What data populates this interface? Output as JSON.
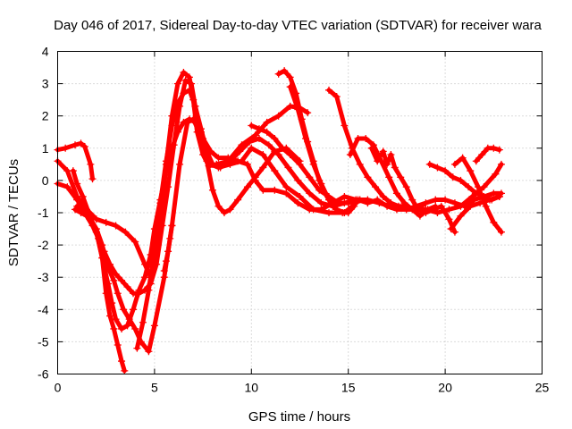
{
  "chart_data": {
    "type": "scatter",
    "title": "Day 046 of 2017, Sidereal Day-to-day VTEC variation (SDTVAR) for receiver wara",
    "xlabel": "GPS time / hours",
    "ylabel": "SDTVAR / TECUs",
    "xlim": [
      0,
      25
    ],
    "ylim": [
      -6,
      4
    ],
    "xticks": [
      0,
      5,
      10,
      15,
      20,
      25
    ],
    "yticks": [
      -6,
      -5,
      -4,
      -3,
      -2,
      -1,
      0,
      1,
      2,
      3,
      4
    ],
    "grid": true,
    "legend": "none",
    "marker": "plus",
    "color": "#ff0000",
    "series": [
      {
        "x": [
          0,
          0.4,
          0.9,
          1.2,
          1.4,
          1.7,
          1.8
        ],
        "y": [
          0.95,
          1.0,
          1.1,
          1.15,
          1.05,
          0.5,
          0.05
        ]
      },
      {
        "x": [
          0,
          0.5,
          1.0,
          1.5,
          2.0,
          2.5,
          3.0,
          3.5,
          4.0,
          4.5,
          4.8,
          5.0,
          5.3,
          5.6,
          5.9,
          6.2,
          6.5,
          6.8,
          7.0,
          7.2,
          7.5,
          7.8,
          8.2,
          8.8,
          9.5,
          10.2,
          10.8,
          11.4,
          12.0,
          12.5,
          12.9
        ],
        "y": [
          0.6,
          0.3,
          -0.5,
          -0.9,
          -1.2,
          -1.3,
          -1.4,
          -1.6,
          -1.9,
          -2.6,
          -3.0,
          -2.6,
          -1.5,
          0.5,
          2.0,
          3.0,
          3.35,
          3.2,
          2.5,
          1.5,
          0.8,
          0.45,
          0.5,
          0.6,
          1.1,
          1.4,
          1.8,
          2.0,
          2.3,
          2.25,
          2.1
        ]
      },
      {
        "x": [
          0,
          0.5,
          1.0,
          1.5,
          2.0,
          2.3,
          2.6,
          2.9,
          3.1,
          3.4,
          3.7,
          4.0,
          4.3,
          4.7,
          5.0,
          5.5,
          5.9,
          6.3,
          6.7,
          7.0,
          7.3,
          7.6,
          7.9,
          8.3,
          8.9,
          9.5,
          10.0,
          10.6,
          11.2,
          11.8,
          12.5,
          13.2,
          14.0,
          14.8
        ],
        "y": [
          -0.1,
          -0.2,
          -0.6,
          -1.0,
          -1.5,
          -2.0,
          -2.7,
          -3.1,
          -3.5,
          -4.0,
          -4.3,
          -4.6,
          -5.0,
          -5.3,
          -4.5,
          -3.0,
          -1.4,
          0.5,
          1.8,
          1.9,
          1.5,
          1.0,
          0.5,
          0.4,
          0.5,
          0.6,
          1.0,
          0.8,
          0.3,
          -0.2,
          -0.5,
          -0.9,
          -1.0,
          -1.0
        ]
      },
      {
        "x": [
          0.8,
          1.0,
          1.3,
          1.6,
          2.0,
          2.3,
          2.6,
          2.8,
          3.0,
          3.3,
          3.6,
          3.9,
          4.2,
          4.5,
          4.8,
          5.0,
          5.3,
          5.6,
          5.9,
          6.2,
          6.5,
          6.8,
          7.1,
          7.5,
          7.9,
          8.3,
          8.8,
          9.3,
          9.8,
          10.2,
          10.6,
          11.2,
          11.8,
          12.4,
          13.0,
          13.6,
          14.2,
          14.8,
          15.4
        ],
        "y": [
          0.3,
          -0.1,
          -0.5,
          -1.0,
          -1.6,
          -2.4,
          -3.2,
          -3.8,
          -4.3,
          -4.6,
          -4.5,
          -4.0,
          -3.4,
          -3.0,
          -2.3,
          -1.5,
          -0.6,
          0.3,
          1.0,
          1.5,
          1.8,
          1.9,
          1.8,
          1.3,
          0.9,
          0.7,
          0.7,
          0.6,
          0.5,
          0.0,
          -0.3,
          -0.3,
          -0.4,
          -0.7,
          -0.9,
          -0.9,
          -0.7,
          -0.5,
          -0.6
        ]
      },
      {
        "x": [
          1.0,
          1.5,
          2.0,
          2.3,
          2.5,
          2.7,
          2.9,
          3.1,
          3.3,
          3.45
        ],
        "y": [
          -0.8,
          -1.1,
          -1.6,
          -2.4,
          -3.5,
          -4.2,
          -4.6,
          -5.1,
          -5.6,
          -5.9
        ]
      },
      {
        "x": [
          0.9,
          1.2,
          1.5,
          1.8,
          2.1,
          2.4,
          2.7,
          3.0,
          3.3,
          3.6,
          3.9,
          4.2,
          4.5,
          4.8,
          5.1,
          5.4,
          5.7,
          6.0,
          6.3,
          6.6,
          6.9,
          7.1,
          7.4,
          7.7,
          8.0,
          8.3,
          8.6,
          8.9,
          9.3,
          9.8,
          10.2,
          10.6,
          11.2,
          11.8,
          12.5
        ],
        "y": [
          -0.9,
          -1.0,
          -1.1,
          -1.4,
          -1.8,
          -2.2,
          -2.6,
          -2.9,
          -3.1,
          -3.3,
          -3.5,
          -3.5,
          -3.4,
          -3.2,
          -2.6,
          -1.4,
          -0.2,
          1.1,
          2.3,
          3.1,
          3.0,
          2.3,
          1.5,
          0.6,
          -0.3,
          -0.8,
          -1.0,
          -0.9,
          -0.6,
          -0.2,
          0.1,
          0.4,
          0.9,
          1.0,
          0.6
        ]
      },
      {
        "x": [
          4.1,
          4.4,
          4.7,
          5.0,
          5.3,
          5.6,
          5.9,
          6.2,
          6.5,
          6.8,
          7.1,
          7.4,
          7.7,
          8.0,
          8.4,
          8.9,
          9.4,
          9.9,
          10.4,
          10.9,
          11.4,
          11.9,
          12.4,
          13.0,
          13.6,
          14.2,
          14.8,
          15.4,
          16.0,
          16.6,
          17.2,
          17.8,
          18.4,
          19.0,
          19.6,
          20.2,
          20.8,
          21.4,
          22.0,
          22.6,
          22.9
        ],
        "y": [
          -5.2,
          -4.4,
          -3.4,
          -2.1,
          -0.7,
          0.6,
          1.7,
          2.4,
          2.7,
          2.8,
          2.3,
          1.6,
          0.9,
          0.5,
          0.4,
          0.6,
          0.9,
          1.2,
          1.3,
          1.1,
          0.8,
          0.4,
          0.0,
          -0.4,
          -0.7,
          -0.8,
          -0.7,
          -0.6,
          -0.6,
          -0.7,
          -0.8,
          -0.8,
          -0.9,
          -0.9,
          -1.0,
          -0.9,
          -0.8,
          -0.5,
          -0.2,
          0.2,
          0.5
        ]
      },
      {
        "x": [
          5.9,
          5.8,
          5.7,
          5.6,
          5.5
        ],
        "y": [
          -1.4,
          -1.8,
          -2.2,
          -2.5,
          -2.8
        ]
      },
      {
        "x": [
          10.0,
          10.4,
          10.8,
          11.2,
          11.6,
          12.0,
          12.5,
          13.0,
          13.5,
          14.0,
          14.5,
          15.0,
          15.5,
          16.0,
          16.5,
          17.0,
          17.5,
          18.0,
          18.5,
          19.0,
          19.5,
          20.0,
          20.5,
          21.0,
          21.5,
          22.0,
          22.5,
          22.9
        ],
        "y": [
          1.7,
          1.6,
          1.5,
          1.3,
          1.0,
          0.8,
          0.5,
          0.1,
          -0.3,
          -0.5,
          -0.7,
          -0.7,
          -0.6,
          -0.7,
          -0.6,
          -0.8,
          -0.9,
          -0.9,
          -0.8,
          -0.7,
          -0.6,
          -0.6,
          -0.7,
          -0.8,
          -0.6,
          -0.5,
          -0.4,
          -0.4
        ]
      },
      {
        "x": [
          11.4,
          11.7,
          12.0,
          12.3,
          12.6,
          12.9,
          13.2,
          13.5,
          13.8,
          14.1,
          14.4,
          14.7,
          15.0,
          15.3
        ],
        "y": [
          3.3,
          3.4,
          3.2,
          2.7,
          1.9,
          1.2,
          0.6,
          0.0,
          -0.4,
          -0.7,
          -0.9,
          -1.0,
          -1.0,
          -0.8
        ]
      },
      {
        "x": [
          12.0,
          12.4,
          12.8,
          13.2,
          13.6,
          14.0,
          14.4,
          14.8,
          15.2,
          15.6
        ],
        "y": [
          2.9,
          2.2,
          1.3,
          0.5,
          -0.1,
          -0.6,
          -0.9,
          -1.0,
          -0.8,
          -0.6
        ]
      },
      {
        "x": [
          14.0,
          14.4,
          14.8,
          15.2,
          15.6,
          16.0,
          16.4,
          16.8,
          17.2,
          17.6,
          18.0,
          18.4,
          18.8
        ],
        "y": [
          2.8,
          2.6,
          1.7,
          1.0,
          0.5,
          0.1,
          -0.2,
          -0.5,
          -0.7,
          -0.8,
          -0.9,
          -0.9,
          -0.8
        ]
      },
      {
        "x": [
          15.1,
          15.5,
          15.9,
          16.3,
          16.7,
          17.1,
          17.5,
          17.9,
          18.3,
          18.7,
          19.1,
          19.5
        ],
        "y": [
          0.8,
          1.3,
          1.3,
          1.1,
          0.6,
          0.1,
          -0.4,
          -0.7,
          -0.9,
          -1.1,
          -0.9,
          -0.8
        ]
      },
      {
        "x": [
          16.2,
          16.5,
          16.8,
          17.0,
          17.2,
          17.4,
          17.7,
          18.0,
          18.3,
          18.6,
          19.0,
          19.4,
          19.8,
          20.2,
          20.5
        ],
        "y": [
          1.0,
          0.6,
          0.9,
          0.5,
          0.8,
          0.4,
          0.1,
          -0.2,
          -0.6,
          -0.9,
          -1.0,
          -0.9,
          -0.8,
          -1.2,
          -1.6
        ]
      },
      {
        "x": [
          19.2,
          19.6,
          20.0,
          20.4,
          20.8,
          21.2,
          21.6,
          22.0,
          22.4,
          22.8
        ],
        "y": [
          0.5,
          0.4,
          0.3,
          0.1,
          0.0,
          -0.2,
          -0.4,
          -0.5,
          -0.6,
          -0.5
        ]
      },
      {
        "x": [
          20.5,
          20.9,
          21.3,
          21.7,
          22.1,
          22.5,
          22.9
        ],
        "y": [
          0.5,
          0.7,
          0.3,
          -0.2,
          -0.8,
          -1.3,
          -1.6
        ]
      },
      {
        "x": [
          21.6,
          21.9,
          22.2,
          22.5,
          22.8
        ],
        "y": [
          0.6,
          0.8,
          1.0,
          1.0,
          0.95
        ]
      },
      {
        "x": [
          20.3,
          20.8,
          21.3,
          21.8,
          22.3,
          22.8
        ],
        "y": [
          -1.5,
          -1.1,
          -0.8,
          -0.7,
          -0.6,
          -0.5
        ]
      }
    ]
  }
}
